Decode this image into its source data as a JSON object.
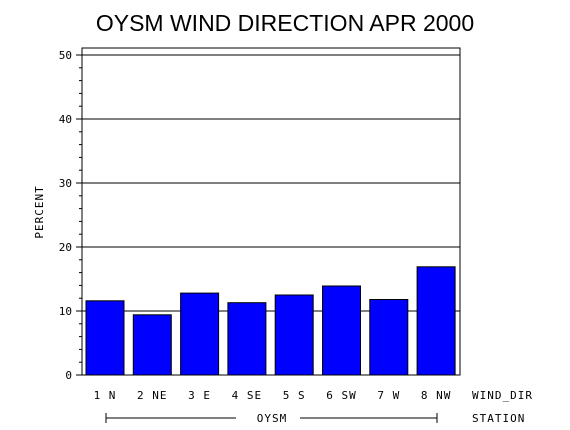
{
  "chart_data": {
    "type": "bar",
    "title": "OYSM WIND DIRECTION APR 2000",
    "ylabel": "PERCENT",
    "xlabel": "WIND_DIR",
    "group_axis_label": "STATION",
    "group_label": "OYSM",
    "categories": [
      "1 N",
      "2 NE",
      "3 E",
      "4 SE",
      "5 S",
      "6 SW",
      "7 W",
      "8 NW"
    ],
    "values": [
      11.6,
      9.4,
      12.8,
      11.3,
      12.5,
      13.9,
      11.8,
      16.9
    ],
    "ylim": [
      0,
      50
    ],
    "yticks": [
      "0",
      "10",
      "20",
      "30",
      "40",
      "50"
    ],
    "grid": true,
    "bar_color": "#0000ff"
  }
}
